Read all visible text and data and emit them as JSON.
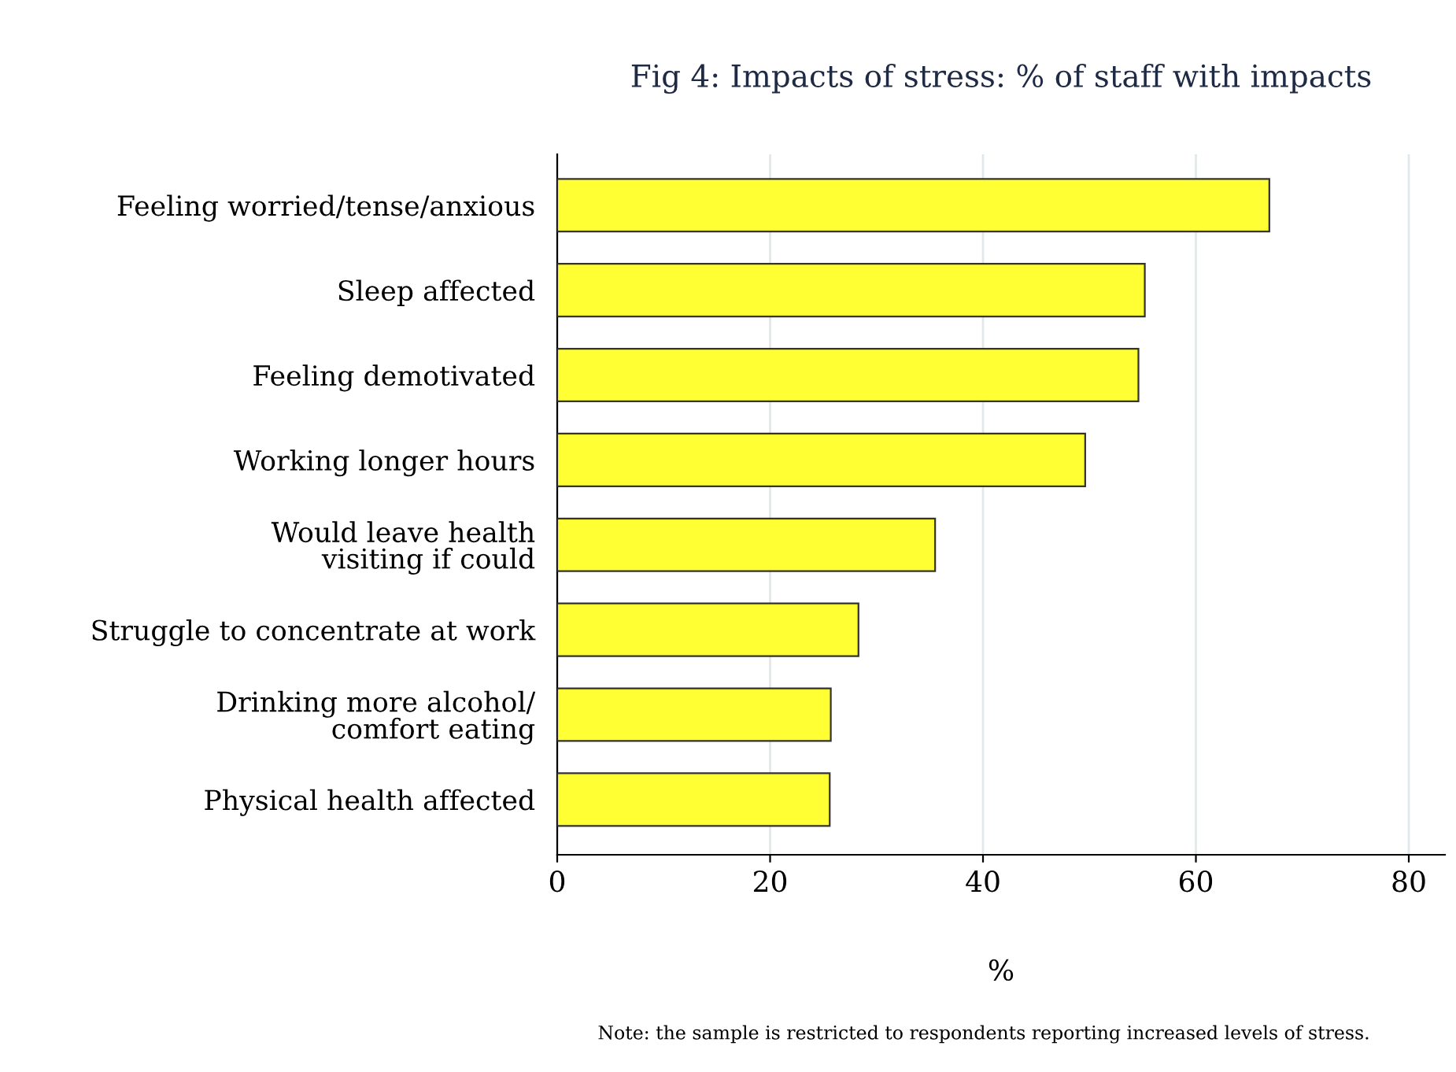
{
  "chart_data": {
    "type": "bar",
    "orientation": "horizontal",
    "title": "Fig 4: Impacts of stress: % of staff with impacts",
    "categories": [
      "Feeling worried/tense/anxious",
      "Sleep affected",
      "Feeling demotivated",
      "Working longer hours",
      "Would leave health\nvisiting if could",
      "Struggle to concentrate at work",
      "Drinking more alcohol/\ncomfort eating",
      "Physical health affected"
    ],
    "values": [
      66.9,
      55.2,
      54.6,
      49.6,
      35.5,
      28.3,
      25.7,
      25.6
    ],
    "color": "#ffff33",
    "xlim": [
      0,
      83.4
    ],
    "xticks": [
      0,
      20,
      40,
      60,
      80
    ],
    "xlabel": "%",
    "grid": "x",
    "annotations": [
      "Note: the sample is restricted to respondents reporting increased levels of stress."
    ]
  }
}
